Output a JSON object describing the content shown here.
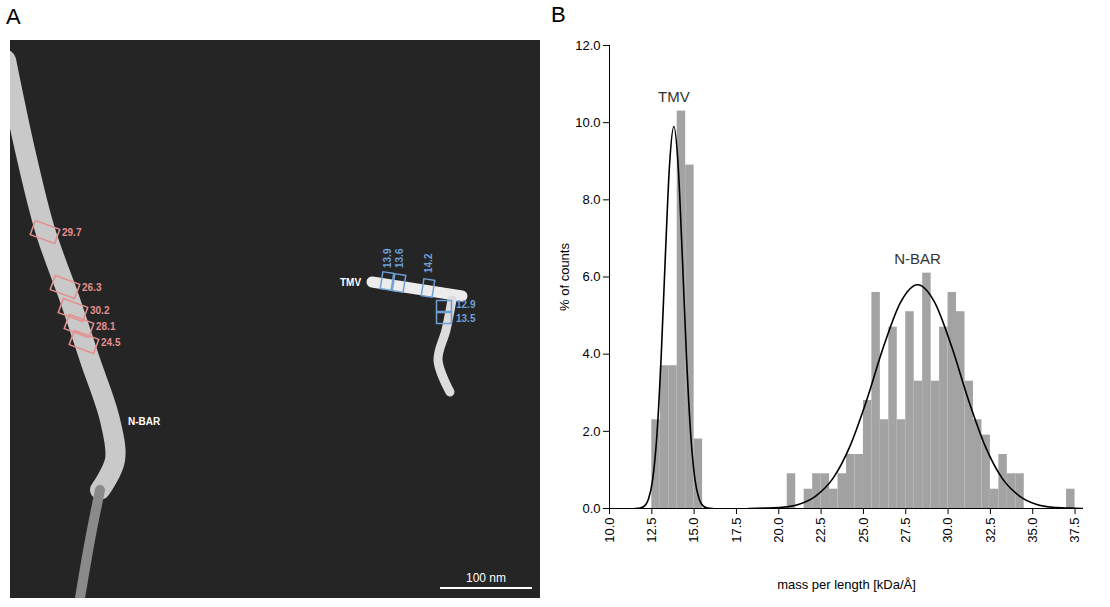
{
  "chart_data": [
    {
      "type": "image",
      "panel_label": "A",
      "objects": [
        {
          "name": "N-BAR",
          "color": "#e58f8f",
          "values": [
            29.7,
            26.3,
            30.2,
            28.1,
            24.5
          ]
        },
        {
          "name": "TMV",
          "color": "#6e9fd6",
          "values": [
            13.9,
            13.6,
            14.2,
            12.9,
            13.5
          ]
        }
      ],
      "scale_bar": "100 nm"
    },
    {
      "type": "histogram",
      "panel_label": "B",
      "xlabel": "mass per length [kDa/Å]",
      "ylabel": "% of counts",
      "xlim": [
        10,
        38
      ],
      "ylim": [
        0,
        12
      ],
      "xticks": [
        {
          "value": 10,
          "label": "10.0"
        },
        {
          "value": 12.5,
          "label": "12.5"
        },
        {
          "value": 15,
          "label": "15.0"
        },
        {
          "value": 17.5,
          "label": "17.5"
        },
        {
          "value": 20,
          "label": "20.0"
        },
        {
          "value": 22.5,
          "label": "22.5"
        },
        {
          "value": 25,
          "label": "25.0"
        },
        {
          "value": 27.5,
          "label": "27.5"
        },
        {
          "value": 30,
          "label": "30.0"
        },
        {
          "value": 32.5,
          "label": "32.5"
        },
        {
          "value": 35,
          "label": "35.0"
        },
        {
          "value": 37.5,
          "label": "37.5"
        }
      ],
      "yticks": [
        {
          "value": 0,
          "label": "0.0"
        },
        {
          "value": 2,
          "label": "2.0"
        },
        {
          "value": 4,
          "label": "4.0"
        },
        {
          "value": 6,
          "label": "6.0"
        },
        {
          "value": 8,
          "label": "8.0"
        },
        {
          "value": 10,
          "label": "10.0"
        },
        {
          "value": 12,
          "label": "12.0"
        }
      ],
      "series": [
        {
          "name": "TMV",
          "color": "#a3a3a3",
          "bins": [
            12.5,
            13,
            13.5,
            14,
            14.5,
            15,
            15.5
          ],
          "values": [
            2.3,
            3.7,
            3.7,
            10.3,
            8.9,
            1.8
          ],
          "fit": {
            "color": "#000000",
            "x": [
              11.5,
              11.8,
              12.05,
              12.3,
              12.55,
              12.8,
              13.05,
              13.3,
              13.55,
              13.8,
              14.05,
              14.3,
              14.55,
              14.8,
              15.05,
              15.3,
              15.55,
              15.8,
              16.1
            ],
            "values": [
              0,
              0.01,
              0.06,
              0.24,
              0.75,
              1.9,
              3.91,
              6.55,
              8.93,
              9.9,
              8.93,
              6.55,
              3.91,
              1.9,
              0.75,
              0.24,
              0.06,
              0.01,
              0
            ]
          }
        },
        {
          "name": "N-BAR",
          "color": "#a3a3a3",
          "bins": [
            20.5,
            21,
            21.5,
            22,
            22.5,
            23,
            23.5,
            24,
            24.5,
            25,
            25.5,
            26,
            26.5,
            27,
            27.5,
            28,
            28.5,
            29,
            29.5,
            30,
            30.5,
            31,
            31.5,
            32,
            32.5,
            33,
            33.5,
            34,
            34.5,
            35,
            35.5,
            36,
            36.5,
            37,
            37.5
          ],
          "values": [
            0.9,
            0,
            0.5,
            0.9,
            0.9,
            0.5,
            0.9,
            1.4,
            1.4,
            2.8,
            5.6,
            2.3,
            4.7,
            2.3,
            5.1,
            3.3,
            6.1,
            3.3,
            4.7,
            5.6,
            5.1,
            3.3,
            2.3,
            1.9,
            0.5,
            1.4,
            0.9,
            0.9,
            0,
            0,
            0,
            0,
            0,
            0.5
          ],
          "fit": {
            "color": "#000000",
            "x": [
              18.2,
              19.2,
              20.2,
              21.2,
              22.2,
              23.2,
              24.2,
              25.2,
              26.2,
              27.2,
              28.2,
              29.2,
              30.2,
              31.2,
              32.2,
              33.2,
              34.2,
              35.2,
              36.2,
              37.2,
              38.2
            ],
            "values": [
              0,
              0.01,
              0.03,
              0.11,
              0.33,
              0.78,
              1.61,
              2.82,
              4.21,
              5.35,
              5.8,
              5.35,
              4.21,
              2.82,
              1.61,
              0.78,
              0.33,
              0.11,
              0.03,
              0.01,
              0
            ]
          }
        }
      ]
    }
  ]
}
